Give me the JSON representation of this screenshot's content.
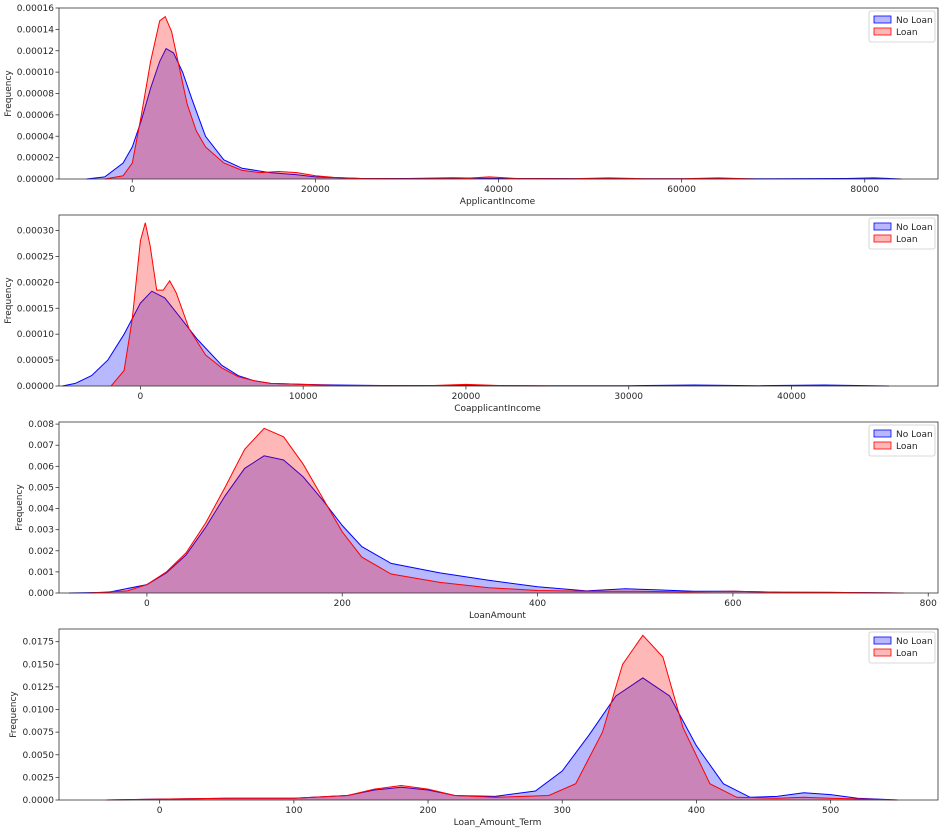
{
  "chart_data": [
    {
      "type": "area",
      "xlabel": "ApplicantIncome",
      "ylabel": "Frequency",
      "xlim": [
        -8000,
        88000
      ],
      "ylim": [
        0,
        0.00016
      ],
      "xticks": [
        0,
        20000,
        40000,
        60000,
        80000
      ],
      "yticks": [
        0.0,
        2e-05,
        4e-05,
        6e-05,
        8e-05,
        0.0001,
        0.00012,
        0.00014,
        0.00016
      ],
      "ytick_labels": [
        "0.00000",
        "0.00002",
        "0.00004",
        "0.00006",
        "0.00008",
        "0.00010",
        "0.00012",
        "0.00014",
        "0.00016"
      ],
      "legend": "top-right",
      "grid": false,
      "series": [
        {
          "name": "No Loan",
          "color": "#0000ff",
          "x": [
            -5000,
            -3000,
            -1000,
            0,
            1000,
            2000,
            3000,
            3700,
            4500,
            5500,
            6500,
            8000,
            10000,
            12000,
            15000,
            18000,
            20000,
            23000,
            25000,
            28000,
            30000,
            35000,
            40000,
            45000,
            50000,
            60000,
            70000,
            78000,
            81000,
            84000
          ],
          "y": [
            0,
            2e-06,
            1.5e-05,
            3e-05,
            5.5e-05,
            8.5e-05,
            0.00011,
            0.000122,
            0.000118,
            0.0001,
            7.5e-05,
            4e-05,
            1.8e-05,
            1e-05,
            6e-06,
            4e-06,
            2e-06,
            1e-06,
            5e-07,
            5e-07,
            5e-07,
            1e-06,
            5e-07,
            5e-07,
            3e-07,
            3e-07,
            3e-07,
            5e-07,
            1e-06,
            0
          ]
        },
        {
          "name": "Loan",
          "color": "#ff0000",
          "x": [
            -3000,
            -1000,
            0,
            1000,
            2000,
            3000,
            3600,
            4300,
            5000,
            6000,
            7000,
            8000,
            10000,
            12000,
            14000,
            16000,
            18000,
            20000,
            22000,
            25000,
            30000,
            36000,
            39000,
            42000,
            48000,
            52000,
            56000,
            60000,
            64000,
            68000
          ],
          "y": [
            0,
            3e-06,
            1.5e-05,
            6e-05,
            0.00011,
            0.000148,
            0.000152,
            0.000138,
            0.00011,
            7e-05,
            4.5e-05,
            3e-05,
            1.5e-05,
            8e-06,
            6e-06,
            7e-06,
            6e-06,
            3e-06,
            1.5e-06,
            5e-07,
            3e-07,
            5e-07,
            2e-06,
            5e-07,
            3e-07,
            1e-06,
            3e-07,
            3e-07,
            1e-06,
            0
          ]
        }
      ]
    },
    {
      "type": "area",
      "xlabel": "CoapplicantIncome",
      "ylabel": "Frequency",
      "xlim": [
        -5000,
        49000
      ],
      "ylim": [
        0,
        0.00033
      ],
      "xticks": [
        0,
        10000,
        20000,
        30000,
        40000
      ],
      "yticks": [
        0.0,
        5e-05,
        0.0001,
        0.00015,
        0.0002,
        0.00025,
        0.0003
      ],
      "ytick_labels": [
        "0.00000",
        "0.00005",
        "0.00010",
        "0.00015",
        "0.00020",
        "0.00025",
        "0.00030"
      ],
      "legend": "top-right",
      "grid": false,
      "series": [
        {
          "name": "No Loan",
          "color": "#0000ff",
          "x": [
            -4800,
            -4000,
            -3000,
            -2000,
            -1000,
            0,
            700,
            1500,
            2500,
            3500,
            5000,
            6000,
            7000,
            8000,
            10000,
            12000,
            15000,
            20000,
            25000,
            30000,
            34000,
            38000,
            42000,
            46000
          ],
          "y": [
            0,
            5e-06,
            2e-05,
            5e-05,
            0.0001,
            0.00016,
            0.000183,
            0.00017,
            0.00013,
            9e-05,
            4e-05,
            2e-05,
            1e-05,
            5e-06,
            3e-06,
            2e-06,
            1e-06,
            1e-06,
            5e-07,
            5e-07,
            2e-06,
            5e-07,
            2e-06,
            0
          ]
        },
        {
          "name": "Loan",
          "color": "#ff0000",
          "x": [
            -1800,
            -1000,
            -500,
            0,
            300,
            600,
            1000,
            1400,
            1800,
            2200,
            3000,
            4000,
            5000,
            6000,
            7000,
            8000,
            10000,
            12000,
            15000,
            18000,
            20000,
            22000,
            25000
          ],
          "y": [
            0,
            3e-05,
            0.00013,
            0.00028,
            0.000315,
            0.00027,
            0.000185,
            0.000185,
            0.000203,
            0.00018,
            0.00011,
            6e-05,
            3.5e-05,
            1.8e-05,
            1e-05,
            5e-06,
            3e-06,
            1e-06,
            5e-07,
            1e-06,
            3e-06,
            1e-06,
            0
          ]
        }
      ]
    },
    {
      "type": "area",
      "xlabel": "LoanAmount",
      "ylabel": "Frequency",
      "xlim": [
        -90,
        810
      ],
      "ylim": [
        0,
        0.0081
      ],
      "xticks": [
        0,
        200,
        400,
        600,
        800
      ],
      "yticks": [
        0.0,
        0.001,
        0.002,
        0.003,
        0.004,
        0.005,
        0.006,
        0.007,
        0.008
      ],
      "ytick_labels": [
        "0.000",
        "0.001",
        "0.002",
        "0.003",
        "0.004",
        "0.005",
        "0.006",
        "0.007",
        "0.008"
      ],
      "legend": "top-right",
      "grid": false,
      "series": [
        {
          "name": "No Loan",
          "color": "#0000ff",
          "x": [
            -80,
            -40,
            0,
            20,
            40,
            60,
            80,
            100,
            120,
            140,
            160,
            180,
            200,
            220,
            250,
            300,
            350,
            400,
            450,
            490,
            520,
            560,
            600,
            650,
            700,
            770
          ],
          "y": [
            0,
            3e-05,
            0.0004,
            0.00095,
            0.0018,
            0.0031,
            0.0046,
            0.0059,
            0.0065,
            0.0063,
            0.0055,
            0.0044,
            0.0032,
            0.0022,
            0.0014,
            0.00095,
            0.0006,
            0.0003,
            0.0001,
            0.0002,
            0.00015,
            8e-05,
            8e-05,
            4e-05,
            3e-05,
            0
          ]
        },
        {
          "name": "Loan",
          "color": "#ff0000",
          "x": [
            -60,
            -20,
            0,
            20,
            40,
            60,
            80,
            100,
            120,
            140,
            160,
            180,
            200,
            220,
            250,
            300,
            350,
            400,
            450,
            500,
            550,
            600,
            650,
            700,
            775
          ],
          "y": [
            0,
            0.0001,
            0.0004,
            0.001,
            0.0019,
            0.0033,
            0.005,
            0.0068,
            0.0078,
            0.0074,
            0.0061,
            0.0045,
            0.0029,
            0.0017,
            0.0009,
            0.0005,
            0.00025,
            0.00012,
            8e-05,
            8e-05,
            5e-05,
            8e-05,
            4e-05,
            3e-05,
            0
          ]
        }
      ]
    },
    {
      "type": "area",
      "xlabel": "Loan_Amount_Term",
      "ylabel": "Frequency",
      "xlim": [
        -75,
        580
      ],
      "ylim": [
        0,
        0.0189
      ],
      "xticks": [
        0,
        100,
        200,
        300,
        400,
        500
      ],
      "yticks": [
        0.0,
        0.0025,
        0.005,
        0.0075,
        0.01,
        0.0125,
        0.015,
        0.0175
      ],
      "ytick_labels": [
        "0.0000",
        "0.0025",
        "0.0050",
        "0.0075",
        "0.0100",
        "0.0125",
        "0.0150",
        "0.0175"
      ],
      "legend": "top-right",
      "grid": false,
      "series": [
        {
          "name": "No Loan",
          "color": "#0000ff",
          "x": [
            -40,
            0,
            50,
            100,
            140,
            160,
            180,
            200,
            220,
            250,
            280,
            300,
            320,
            340,
            360,
            380,
            400,
            420,
            440,
            460,
            480,
            500,
            520,
            550
          ],
          "y": [
            0,
            0.0001,
            0.0002,
            0.0002,
            0.0005,
            0.0011,
            0.0014,
            0.0011,
            0.0005,
            0.0004,
            0.001,
            0.0032,
            0.0072,
            0.0115,
            0.0135,
            0.0115,
            0.006,
            0.0018,
            0.0003,
            0.0004,
            0.0008,
            0.0006,
            0.0002,
            0
          ]
        },
        {
          "name": "Loan",
          "color": "#ff0000",
          "x": [
            -40,
            0,
            50,
            100,
            140,
            160,
            180,
            200,
            220,
            250,
            290,
            310,
            330,
            345,
            360,
            375,
            390,
            410,
            430,
            460,
            480,
            500,
            550
          ],
          "y": [
            0,
            0.0001,
            0.0002,
            0.0002,
            0.0005,
            0.0012,
            0.0016,
            0.0012,
            0.0005,
            0.0003,
            0.0005,
            0.0018,
            0.0075,
            0.015,
            0.0182,
            0.0158,
            0.008,
            0.0018,
            0.0003,
            0.0002,
            0.0003,
            0.0002,
            0
          ]
        }
      ]
    }
  ]
}
